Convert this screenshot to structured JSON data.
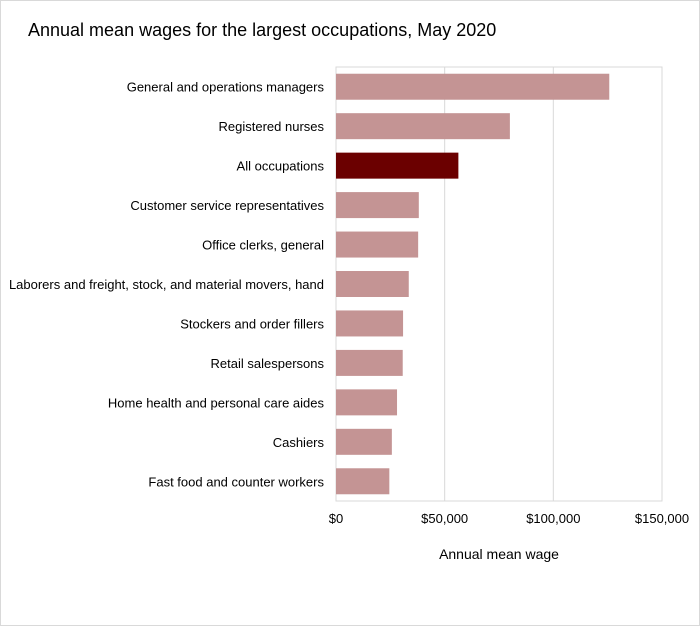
{
  "chart_data": {
    "type": "bar",
    "orientation": "horizontal",
    "title": "Annual mean wages for the largest occupations, May 2020",
    "xlabel": "Annual mean wage",
    "ylabel": "",
    "xlim": [
      0,
      150000
    ],
    "ticks": [
      {
        "value": 0,
        "label": "$0"
      },
      {
        "value": 50000,
        "label": "$50,000"
      },
      {
        "value": 100000,
        "label": "$100,000"
      },
      {
        "value": 150000,
        "label": "$150,000"
      }
    ],
    "grid": true,
    "legend": "none",
    "categories": [
      "General and operations managers",
      "Registered nurses",
      "All occupations",
      "Customer service representatives",
      "Office clerks, general",
      "Laborers and freight, stock, and material movers, hand",
      "Stockers and order fillers",
      "Retail salespersons",
      "Home health and personal care aides",
      "Cashiers",
      "Fast food and counter workers"
    ],
    "values": [
      125740,
      80010,
      56310,
      38100,
      37800,
      33480,
      30860,
      30700,
      28080,
      25700,
      24540
    ],
    "highlight_category": "All occupations",
    "colors": {
      "bar": "#c49494",
      "highlight": "#6b0000",
      "grid": "#d9d9d9"
    }
  }
}
